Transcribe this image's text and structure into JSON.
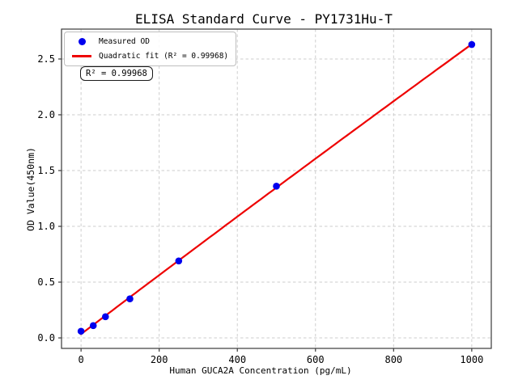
{
  "figure": {
    "background": "#ffffff"
  },
  "chart_data": {
    "type": "scatter",
    "title": "ELISA Standard Curve - PY1731Hu-T",
    "xlabel": "Human GUCA2A Concentration (pg/mL)",
    "ylabel": "OD Value(450nm)",
    "x": [
      0,
      31.25,
      62.5,
      125,
      250,
      500,
      1000
    ],
    "series": [
      {
        "name": "Measured OD",
        "type": "scatter",
        "marker": "circle",
        "color": "#0000ee",
        "y": [
          0.06,
          0.11,
          0.19,
          0.35,
          0.69,
          1.36,
          2.63
        ]
      },
      {
        "name": "Quadratic fit (R² = 0.99968)",
        "type": "line",
        "fit": "quadratic",
        "color": "#ee0000",
        "x_range": [
          0,
          1000
        ]
      }
    ],
    "annotation": "R² = 0.99968",
    "r_squared": 0.99968,
    "xticks": [
      0,
      200,
      400,
      600,
      800,
      1000
    ],
    "xtick_labels": [
      "0",
      "200",
      "400",
      "600",
      "800",
      "1000"
    ],
    "yticks": [
      0,
      0.5,
      1.0,
      1.5,
      2.0,
      2.5
    ],
    "ytick_labels": [
      "0.0",
      "0.5",
      "1.0",
      "1.5",
      "2.0",
      "2.5"
    ],
    "xlim": [
      -50,
      1050
    ],
    "ylim": [
      -0.094,
      2.768
    ],
    "grid": true,
    "grid_style": "dashed",
    "legend_position": "upper left",
    "colors": {
      "grid": "#cecece",
      "spine": "#3a3a3a",
      "text": "#000000"
    }
  }
}
